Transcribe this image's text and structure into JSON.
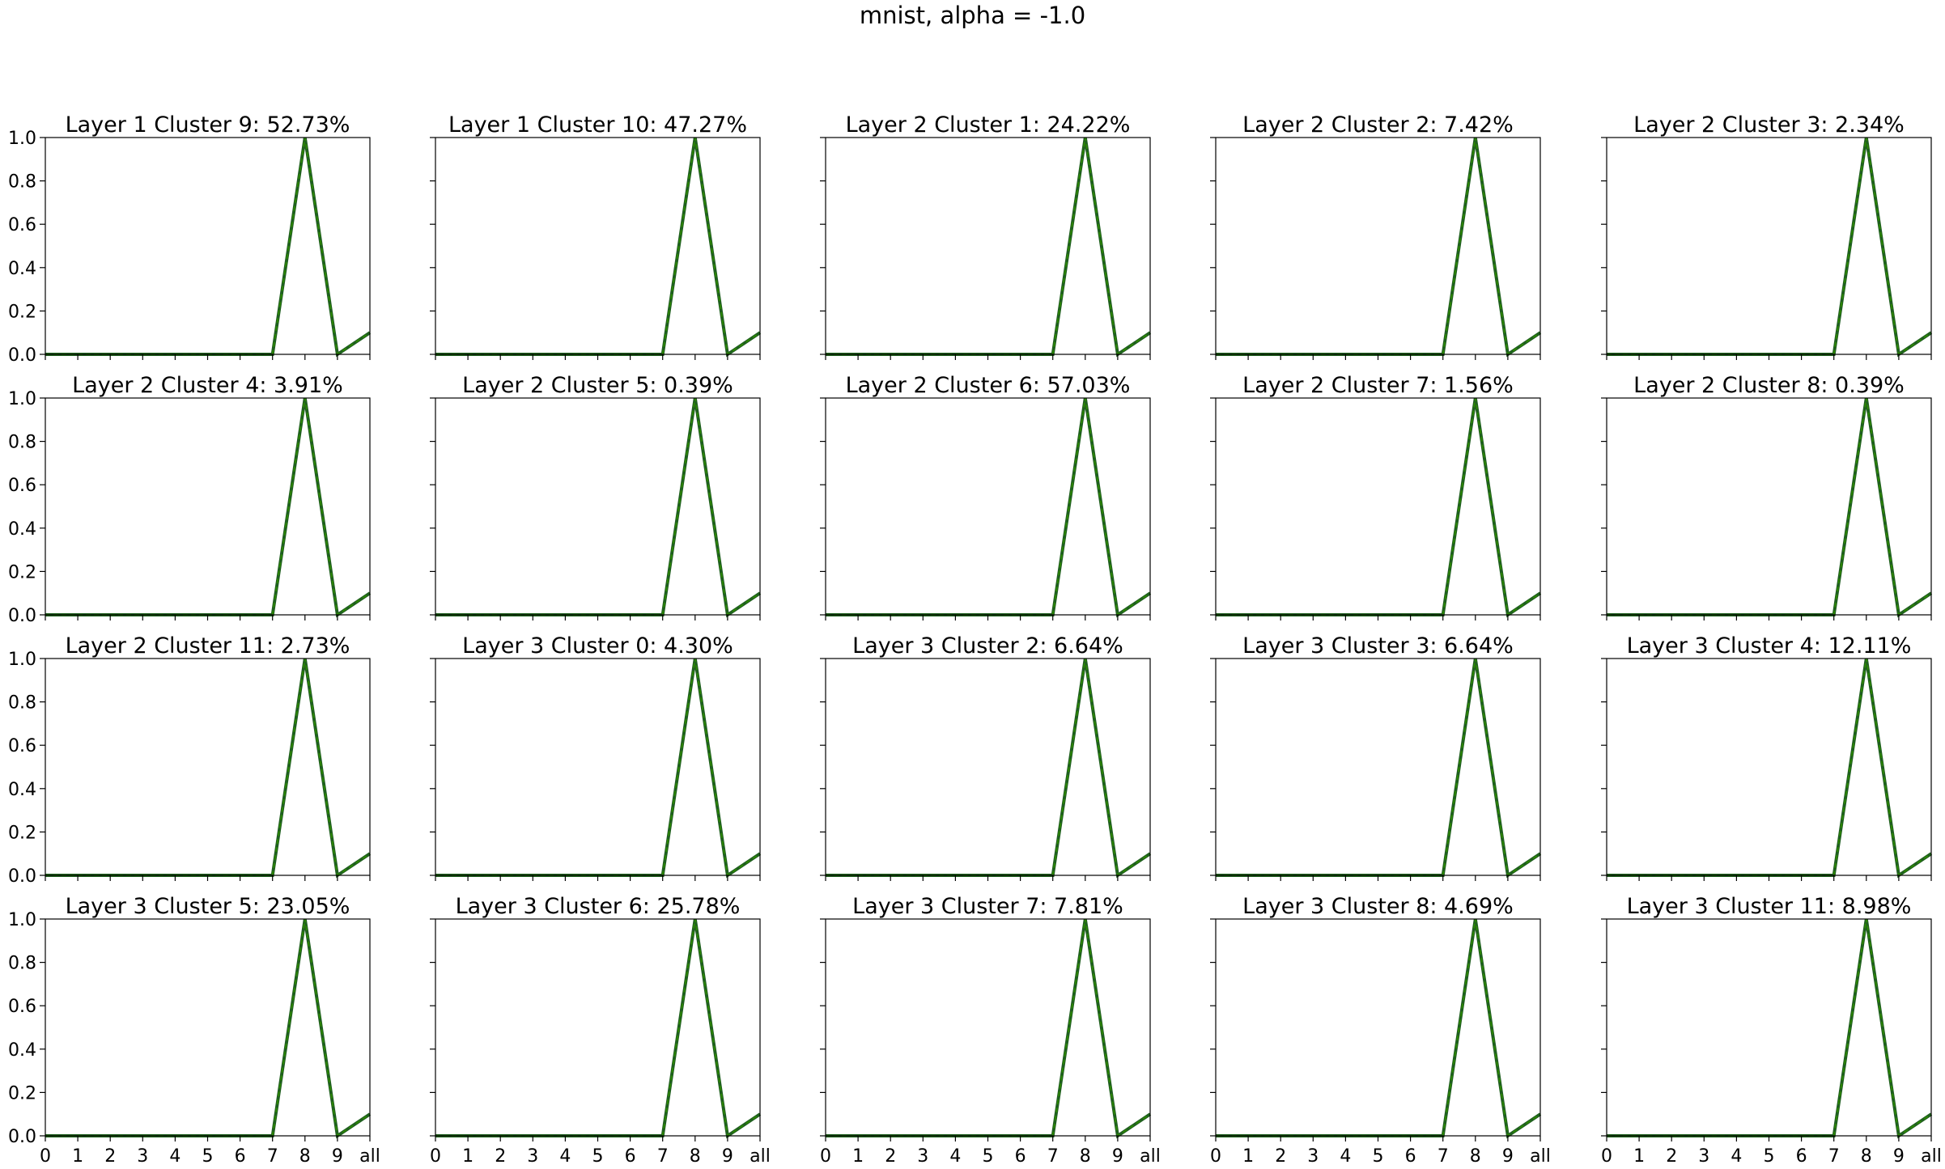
{
  "figure": {
    "suptitle": "mnist, alpha = -1.0"
  },
  "colors": {
    "line_outer": "#1f5f1f",
    "line_inner": "#2e8b00",
    "axes": "#000000",
    "background": "#ffffff"
  },
  "chart_data": [
    {
      "type": "line",
      "title": "Layer 1 Cluster 9: 52.73%",
      "categories": [
        "0",
        "1",
        "2",
        "3",
        "4",
        "5",
        "6",
        "7",
        "8",
        "9",
        "all"
      ],
      "values": [
        0,
        0,
        0,
        0,
        0,
        0,
        0,
        0,
        1,
        0,
        0.1
      ],
      "ylim": [
        0,
        1
      ],
      "yticks": [
        "0.0",
        "0.2",
        "0.4",
        "0.6",
        "0.8",
        "1.0"
      ]
    },
    {
      "type": "line",
      "title": "Layer 1 Cluster 10: 47.27%",
      "categories": [
        "0",
        "1",
        "2",
        "3",
        "4",
        "5",
        "6",
        "7",
        "8",
        "9",
        "all"
      ],
      "values": [
        0,
        0,
        0,
        0,
        0,
        0,
        0,
        0,
        1,
        0,
        0.1
      ],
      "ylim": [
        0,
        1
      ],
      "yticks": [
        "0.0",
        "0.2",
        "0.4",
        "0.6",
        "0.8",
        "1.0"
      ]
    },
    {
      "type": "line",
      "title": "Layer 2 Cluster 1: 24.22%",
      "categories": [
        "0",
        "1",
        "2",
        "3",
        "4",
        "5",
        "6",
        "7",
        "8",
        "9",
        "all"
      ],
      "values": [
        0,
        0,
        0,
        0,
        0,
        0,
        0,
        0,
        1,
        0,
        0.1
      ],
      "ylim": [
        0,
        1
      ],
      "yticks": [
        "0.0",
        "0.2",
        "0.4",
        "0.6",
        "0.8",
        "1.0"
      ]
    },
    {
      "type": "line",
      "title": "Layer 2 Cluster 2: 7.42%",
      "categories": [
        "0",
        "1",
        "2",
        "3",
        "4",
        "5",
        "6",
        "7",
        "8",
        "9",
        "all"
      ],
      "values": [
        0,
        0,
        0,
        0,
        0,
        0,
        0,
        0,
        1,
        0,
        0.1
      ],
      "ylim": [
        0,
        1
      ],
      "yticks": [
        "0.0",
        "0.2",
        "0.4",
        "0.6",
        "0.8",
        "1.0"
      ]
    },
    {
      "type": "line",
      "title": "Layer 2 Cluster 3: 2.34%",
      "categories": [
        "0",
        "1",
        "2",
        "3",
        "4",
        "5",
        "6",
        "7",
        "8",
        "9",
        "all"
      ],
      "values": [
        0,
        0,
        0,
        0,
        0,
        0,
        0,
        0,
        1,
        0,
        0.1
      ],
      "ylim": [
        0,
        1
      ],
      "yticks": [
        "0.0",
        "0.2",
        "0.4",
        "0.6",
        "0.8",
        "1.0"
      ]
    },
    {
      "type": "line",
      "title": "Layer 2 Cluster 4: 3.91%",
      "categories": [
        "0",
        "1",
        "2",
        "3",
        "4",
        "5",
        "6",
        "7",
        "8",
        "9",
        "all"
      ],
      "values": [
        0,
        0,
        0,
        0,
        0,
        0,
        0,
        0,
        1,
        0,
        0.1
      ],
      "ylim": [
        0,
        1
      ],
      "yticks": [
        "0.0",
        "0.2",
        "0.4",
        "0.6",
        "0.8",
        "1.0"
      ]
    },
    {
      "type": "line",
      "title": "Layer 2 Cluster 5: 0.39%",
      "categories": [
        "0",
        "1",
        "2",
        "3",
        "4",
        "5",
        "6",
        "7",
        "8",
        "9",
        "all"
      ],
      "values": [
        0,
        0,
        0,
        0,
        0,
        0,
        0,
        0,
        1,
        0,
        0.1
      ],
      "ylim": [
        0,
        1
      ],
      "yticks": [
        "0.0",
        "0.2",
        "0.4",
        "0.6",
        "0.8",
        "1.0"
      ]
    },
    {
      "type": "line",
      "title": "Layer 2 Cluster 6: 57.03%",
      "categories": [
        "0",
        "1",
        "2",
        "3",
        "4",
        "5",
        "6",
        "7",
        "8",
        "9",
        "all"
      ],
      "values": [
        0,
        0,
        0,
        0,
        0,
        0,
        0,
        0,
        1,
        0,
        0.1
      ],
      "ylim": [
        0,
        1
      ],
      "yticks": [
        "0.0",
        "0.2",
        "0.4",
        "0.6",
        "0.8",
        "1.0"
      ]
    },
    {
      "type": "line",
      "title": "Layer 2 Cluster 7: 1.56%",
      "categories": [
        "0",
        "1",
        "2",
        "3",
        "4",
        "5",
        "6",
        "7",
        "8",
        "9",
        "all"
      ],
      "values": [
        0,
        0,
        0,
        0,
        0,
        0,
        0,
        0,
        1,
        0,
        0.1
      ],
      "ylim": [
        0,
        1
      ],
      "yticks": [
        "0.0",
        "0.2",
        "0.4",
        "0.6",
        "0.8",
        "1.0"
      ]
    },
    {
      "type": "line",
      "title": "Layer 2 Cluster 8: 0.39%",
      "categories": [
        "0",
        "1",
        "2",
        "3",
        "4",
        "5",
        "6",
        "7",
        "8",
        "9",
        "all"
      ],
      "values": [
        0,
        0,
        0,
        0,
        0,
        0,
        0,
        0,
        1,
        0,
        0.1
      ],
      "ylim": [
        0,
        1
      ],
      "yticks": [
        "0.0",
        "0.2",
        "0.4",
        "0.6",
        "0.8",
        "1.0"
      ]
    },
    {
      "type": "line",
      "title": "Layer 2 Cluster 11: 2.73%",
      "categories": [
        "0",
        "1",
        "2",
        "3",
        "4",
        "5",
        "6",
        "7",
        "8",
        "9",
        "all"
      ],
      "values": [
        0,
        0,
        0,
        0,
        0,
        0,
        0,
        0,
        1,
        0,
        0.1
      ],
      "ylim": [
        0,
        1
      ],
      "yticks": [
        "0.0",
        "0.2",
        "0.4",
        "0.6",
        "0.8",
        "1.0"
      ]
    },
    {
      "type": "line",
      "title": "Layer 3 Cluster 0: 4.30%",
      "categories": [
        "0",
        "1",
        "2",
        "3",
        "4",
        "5",
        "6",
        "7",
        "8",
        "9",
        "all"
      ],
      "values": [
        0,
        0,
        0,
        0,
        0,
        0,
        0,
        0,
        1,
        0,
        0.1
      ],
      "ylim": [
        0,
        1
      ],
      "yticks": [
        "0.0",
        "0.2",
        "0.4",
        "0.6",
        "0.8",
        "1.0"
      ]
    },
    {
      "type": "line",
      "title": "Layer 3 Cluster 2: 6.64%",
      "categories": [
        "0",
        "1",
        "2",
        "3",
        "4",
        "5",
        "6",
        "7",
        "8",
        "9",
        "all"
      ],
      "values": [
        0,
        0,
        0,
        0,
        0,
        0,
        0,
        0,
        1,
        0,
        0.1
      ],
      "ylim": [
        0,
        1
      ],
      "yticks": [
        "0.0",
        "0.2",
        "0.4",
        "0.6",
        "0.8",
        "1.0"
      ]
    },
    {
      "type": "line",
      "title": "Layer 3 Cluster 3: 6.64%",
      "categories": [
        "0",
        "1",
        "2",
        "3",
        "4",
        "5",
        "6",
        "7",
        "8",
        "9",
        "all"
      ],
      "values": [
        0,
        0,
        0,
        0,
        0,
        0,
        0,
        0,
        1,
        0,
        0.1
      ],
      "ylim": [
        0,
        1
      ],
      "yticks": [
        "0.0",
        "0.2",
        "0.4",
        "0.6",
        "0.8",
        "1.0"
      ]
    },
    {
      "type": "line",
      "title": "Layer 3 Cluster 4: 12.11%",
      "categories": [
        "0",
        "1",
        "2",
        "3",
        "4",
        "5",
        "6",
        "7",
        "8",
        "9",
        "all"
      ],
      "values": [
        0,
        0,
        0,
        0,
        0,
        0,
        0,
        0,
        1,
        0,
        0.1
      ],
      "ylim": [
        0,
        1
      ],
      "yticks": [
        "0.0",
        "0.2",
        "0.4",
        "0.6",
        "0.8",
        "1.0"
      ]
    },
    {
      "type": "line",
      "title": "Layer 3 Cluster 5: 23.05%",
      "categories": [
        "0",
        "1",
        "2",
        "3",
        "4",
        "5",
        "6",
        "7",
        "8",
        "9",
        "all"
      ],
      "values": [
        0,
        0,
        0,
        0,
        0,
        0,
        0,
        0,
        1,
        0,
        0.1
      ],
      "ylim": [
        0,
        1
      ],
      "yticks": [
        "0.0",
        "0.2",
        "0.4",
        "0.6",
        "0.8",
        "1.0"
      ]
    },
    {
      "type": "line",
      "title": "Layer 3 Cluster 6: 25.78%",
      "categories": [
        "0",
        "1",
        "2",
        "3",
        "4",
        "5",
        "6",
        "7",
        "8",
        "9",
        "all"
      ],
      "values": [
        0,
        0,
        0,
        0,
        0,
        0,
        0,
        0,
        1,
        0,
        0.1
      ],
      "ylim": [
        0,
        1
      ],
      "yticks": [
        "0.0",
        "0.2",
        "0.4",
        "0.6",
        "0.8",
        "1.0"
      ]
    },
    {
      "type": "line",
      "title": "Layer 3 Cluster 7: 7.81%",
      "categories": [
        "0",
        "1",
        "2",
        "3",
        "4",
        "5",
        "6",
        "7",
        "8",
        "9",
        "all"
      ],
      "values": [
        0,
        0,
        0,
        0,
        0,
        0,
        0,
        0,
        1,
        0,
        0.1
      ],
      "ylim": [
        0,
        1
      ],
      "yticks": [
        "0.0",
        "0.2",
        "0.4",
        "0.6",
        "0.8",
        "1.0"
      ]
    },
    {
      "type": "line",
      "title": "Layer 3 Cluster 8: 4.69%",
      "categories": [
        "0",
        "1",
        "2",
        "3",
        "4",
        "5",
        "6",
        "7",
        "8",
        "9",
        "all"
      ],
      "values": [
        0,
        0,
        0,
        0,
        0,
        0,
        0,
        0,
        1,
        0,
        0.1
      ],
      "ylim": [
        0,
        1
      ],
      "yticks": [
        "0.0",
        "0.2",
        "0.4",
        "0.6",
        "0.8",
        "1.0"
      ]
    },
    {
      "type": "line",
      "title": "Layer 3 Cluster 11: 8.98%",
      "categories": [
        "0",
        "1",
        "2",
        "3",
        "4",
        "5",
        "6",
        "7",
        "8",
        "9",
        "all"
      ],
      "values": [
        0,
        0,
        0,
        0,
        0,
        0,
        0,
        0,
        1,
        0,
        0.1
      ],
      "ylim": [
        0,
        1
      ],
      "yticks": [
        "0.0",
        "0.2",
        "0.4",
        "0.6",
        "0.8",
        "1.0"
      ]
    }
  ]
}
